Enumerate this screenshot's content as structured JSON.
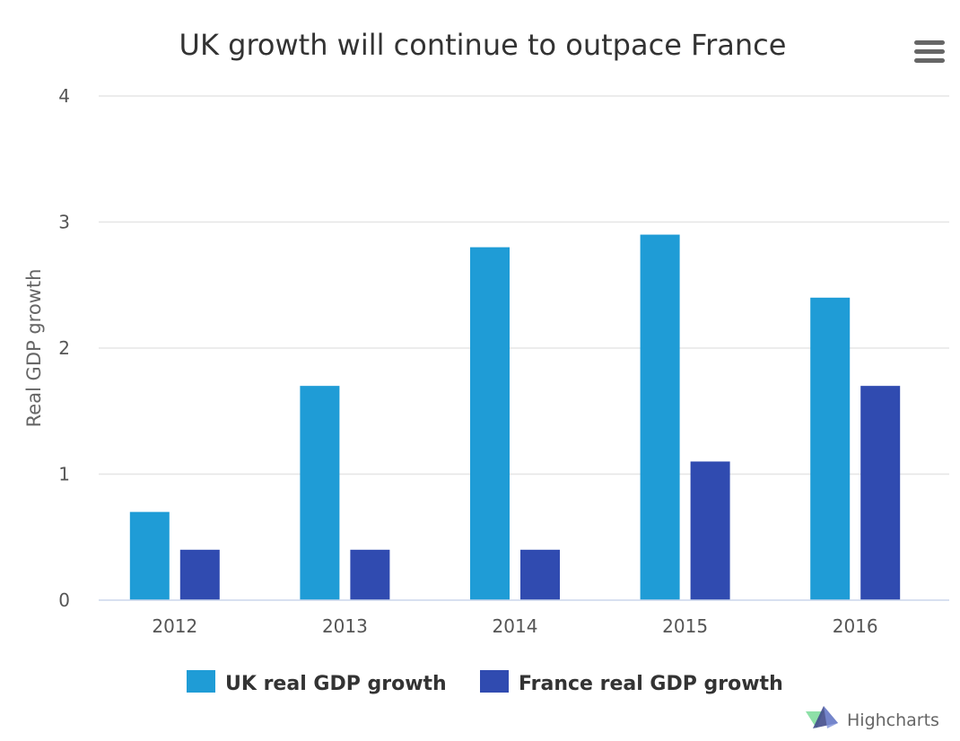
{
  "chart_data": {
    "type": "bar",
    "title": "UK growth will continue to outpace France",
    "ylabel": "Real GDP growth",
    "xlabel": "",
    "categories": [
      "2012",
      "2013",
      "2014",
      "2015",
      "2016"
    ],
    "ylim": [
      0,
      4
    ],
    "yticks": [
      0,
      1,
      2,
      3,
      4
    ],
    "grid": true,
    "legend": "bottom-center",
    "series": [
      {
        "name": "UK real GDP growth",
        "color": "#1f9cd6",
        "values": [
          0.7,
          1.7,
          2.8,
          2.9,
          2.4
        ]
      },
      {
        "name": "France real GDP growth",
        "color": "#304bb0",
        "values": [
          0.4,
          0.4,
          0.4,
          1.1,
          1.7
        ]
      }
    ]
  },
  "menu": {
    "icon": "hamburger-menu-icon"
  },
  "credits": {
    "text": "Highcharts",
    "icon": "highcharts-logo-icon"
  }
}
